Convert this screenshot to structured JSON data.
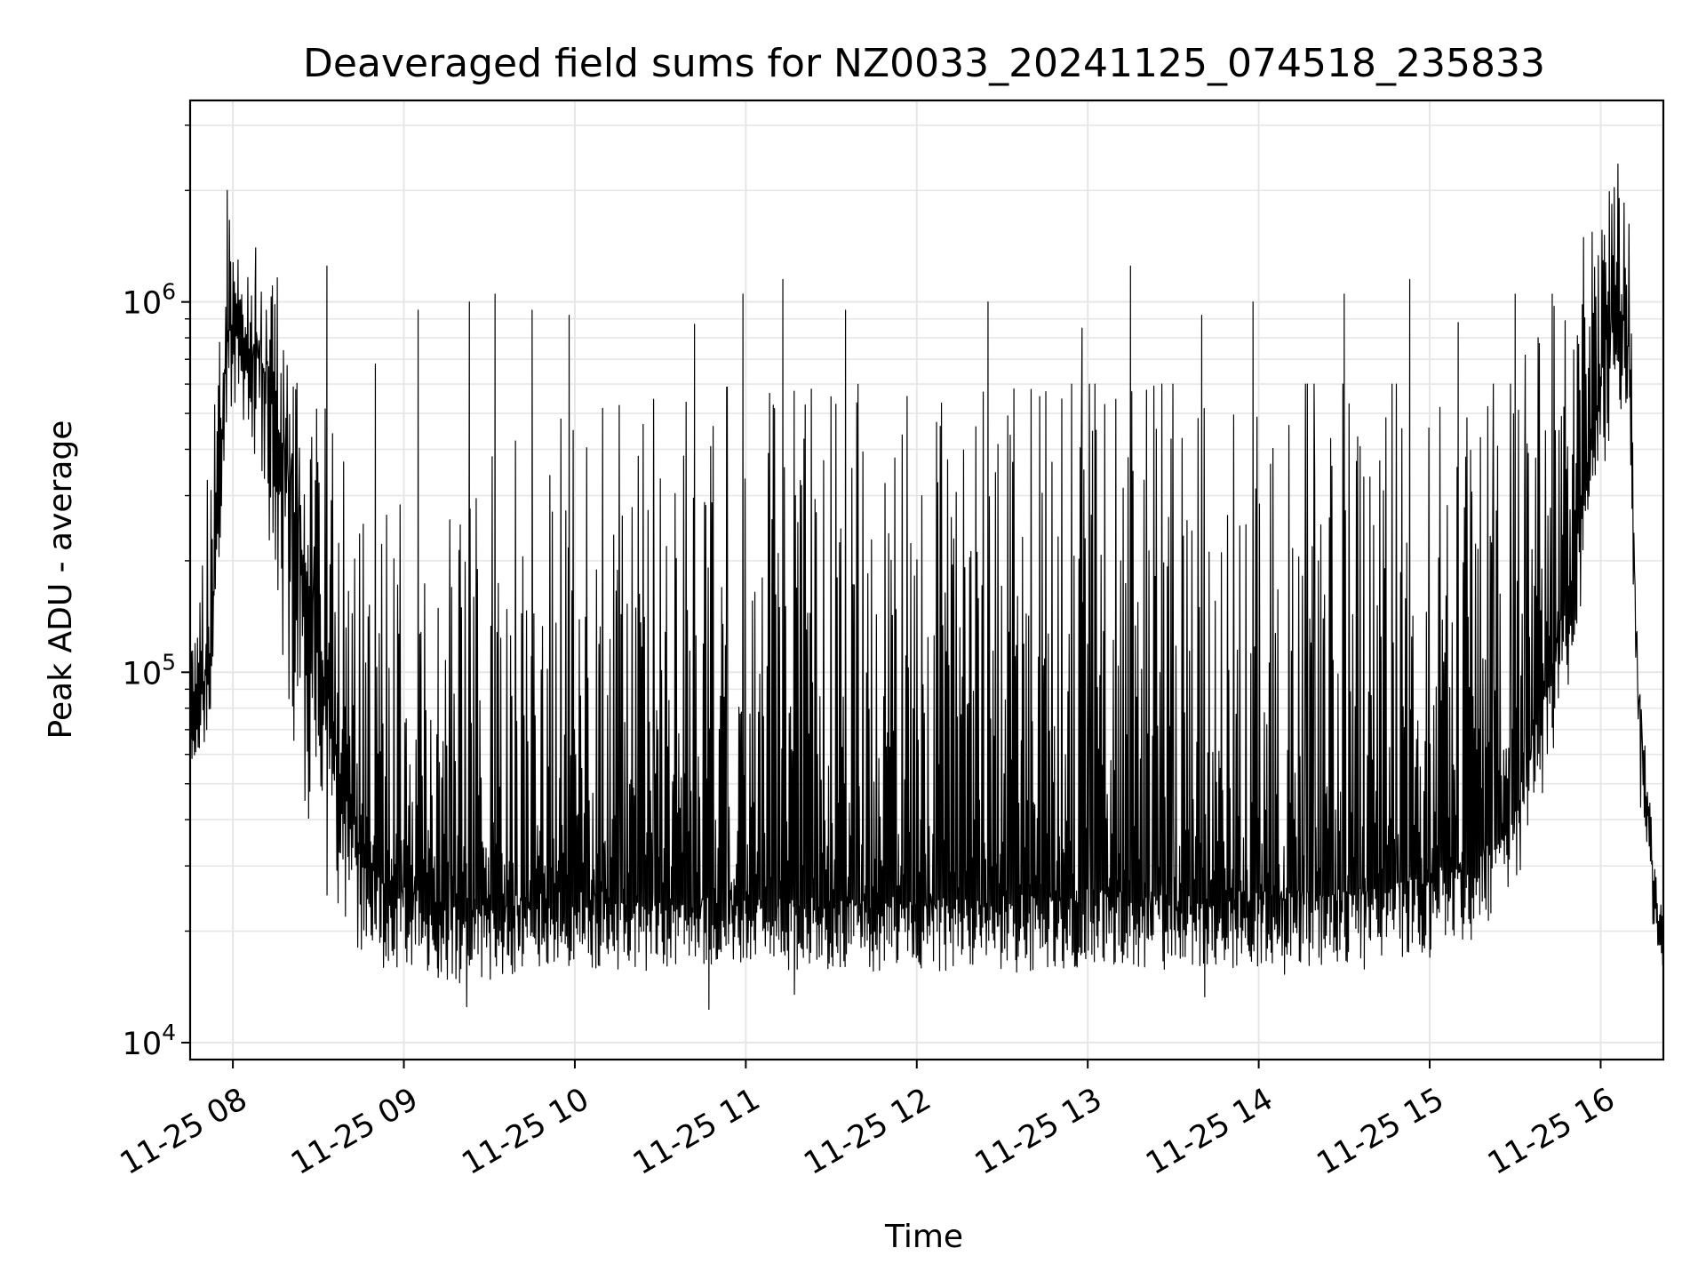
{
  "chart_data": {
    "type": "line",
    "title": "Deaveraged field sums for NZ0033_20241125_074518_235833",
    "xlabel": "Time",
    "ylabel": "Peak ADU - average",
    "y_scale": "log",
    "ylim": [
      9000,
      3500000
    ],
    "xlim": [
      "2024-11-25 07:45",
      "2024-11-25 16:22"
    ],
    "grid": true,
    "line_color": "#000000",
    "grid_color": "#e6e6e6",
    "x_ticks": [
      {
        "label": "11-25 08",
        "value": "2024-11-25 08:00"
      },
      {
        "label": "11-25 09",
        "value": "2024-11-25 09:00"
      },
      {
        "label": "11-25 10",
        "value": "2024-11-25 10:00"
      },
      {
        "label": "11-25 11",
        "value": "2024-11-25 11:00"
      },
      {
        "label": "11-25 12",
        "value": "2024-11-25 12:00"
      },
      {
        "label": "11-25 13",
        "value": "2024-11-25 13:00"
      },
      {
        "label": "11-25 14",
        "value": "2024-11-25 14:00"
      },
      {
        "label": "11-25 15",
        "value": "2024-11-25 15:00"
      },
      {
        "label": "11-25 16",
        "value": "2024-11-25 16:00"
      }
    ],
    "y_ticks": [
      {
        "base": "10",
        "exp": "4",
        "value": 10000
      },
      {
        "base": "10",
        "exp": "5",
        "value": 100000
      },
      {
        "base": "10",
        "exp": "6",
        "value": 1000000
      }
    ],
    "series": [
      {
        "x": [
          "2024-11-25 07:45",
          "2024-11-25 07:48",
          "2024-11-25 07:52",
          "2024-11-25 07:55",
          "2024-11-25 07:58",
          "2024-11-25 08:02",
          "2024-11-25 08:06",
          "2024-11-25 08:10",
          "2024-11-25 08:15",
          "2024-11-25 08:20",
          "2024-11-25 08:25",
          "2024-11-25 08:30",
          "2024-11-25 08:35",
          "2024-11-25 08:40",
          "2024-11-25 08:45",
          "2024-11-25 08:52",
          "2024-11-25 09:00",
          "2024-11-25 09:15",
          "2024-11-25 09:30",
          "2024-11-25 09:45",
          "2024-11-25 10:00",
          "2024-11-25 10:30",
          "2024-11-25 11:00",
          "2024-11-25 11:30",
          "2024-11-25 12:00",
          "2024-11-25 12:30",
          "2024-11-25 13:00",
          "2024-11-25 13:30",
          "2024-11-25 14:00",
          "2024-11-25 14:30",
          "2024-11-25 15:00",
          "2024-11-25 15:15",
          "2024-11-25 15:30",
          "2024-11-25 15:40",
          "2024-11-25 15:50",
          "2024-11-25 15:55",
          "2024-11-25 16:00",
          "2024-11-25 16:05",
          "2024-11-25 16:08",
          "2024-11-25 16:10",
          "2024-11-25 16:13",
          "2024-11-25 16:16",
          "2024-11-25 16:19",
          "2024-11-25 16:22"
        ],
        "base": [
          75000,
          80000,
          110000,
          300000,
          800000,
          900000,
          700000,
          700000,
          500000,
          300000,
          200000,
          120000,
          70000,
          40000,
          30000,
          26000,
          25000,
          23000,
          22000,
          24000,
          24000,
          23000,
          23000,
          23000,
          23000,
          23000,
          24000,
          23000,
          24000,
          24000,
          27000,
          29000,
          40000,
          80000,
          180000,
          350000,
          600000,
          900000,
          900000,
          700000,
          90000,
          45000,
          25000,
          17000
        ],
        "peak": [
          140000,
          180000,
          400000,
          1200000,
          2000000,
          1300000,
          1300000,
          1100000,
          1200000,
          1250000,
          700000,
          600000,
          500000,
          400000,
          380000,
          300000,
          280000,
          250000,
          380000,
          450000,
          500000,
          550000,
          600000,
          600000,
          600000,
          600000,
          600000,
          600000,
          600000,
          600000,
          600000,
          600000,
          600000,
          1000000,
          1400000,
          1600000,
          1800000,
          2500000,
          2600000,
          1800000,
          100000,
          60000,
          30000,
          22000
        ],
        "trough": [
          50000,
          60000,
          70000,
          180000,
          500000,
          550000,
          400000,
          300000,
          150000,
          70000,
          40000,
          30000,
          22000,
          20000,
          17000,
          16000,
          15500,
          14500,
          14500,
          16000,
          16000,
          15500,
          15500,
          15500,
          15500,
          15500,
          16000,
          15500,
          16000,
          16000,
          17500,
          19000,
          26000,
          45000,
          100000,
          200000,
          300000,
          500000,
          500000,
          450000,
          50000,
          32000,
          18000,
          16000
        ],
        "spikes": [
          {
            "t": "2024-11-25 07:58",
            "v": 2000000
          },
          {
            "t": "2024-11-25 08:08",
            "v": 1400000
          },
          {
            "t": "2024-11-25 08:33",
            "v": 1250000
          },
          {
            "t": "2024-11-25 08:50",
            "v": 680000
          },
          {
            "t": "2024-11-25 09:05",
            "v": 950000
          },
          {
            "t": "2024-11-25 09:23",
            "v": 1000000
          },
          {
            "t": "2024-11-25 09:32",
            "v": 1050000
          },
          {
            "t": "2024-11-25 09:45",
            "v": 950000
          },
          {
            "t": "2024-11-25 09:58",
            "v": 920000
          },
          {
            "t": "2024-11-25 10:42",
            "v": 870000
          },
          {
            "t": "2024-11-25 10:59",
            "v": 1050000
          },
          {
            "t": "2024-11-25 11:13",
            "v": 1150000
          },
          {
            "t": "2024-11-25 11:35",
            "v": 950000
          },
          {
            "t": "2024-11-25 12:25",
            "v": 1000000
          },
          {
            "t": "2024-11-25 12:58",
            "v": 850000
          },
          {
            "t": "2024-11-25 13:15",
            "v": 1250000
          },
          {
            "t": "2024-11-25 13:40",
            "v": 920000
          },
          {
            "t": "2024-11-25 13:58",
            "v": 1000000
          },
          {
            "t": "2024-11-25 14:30",
            "v": 1050000
          },
          {
            "t": "2024-11-25 14:53",
            "v": 1150000
          },
          {
            "t": "2024-11-25 15:10",
            "v": 880000
          },
          {
            "t": "2024-11-25 15:30",
            "v": 1050000
          },
          {
            "t": "2024-11-25 15:43",
            "v": 1050000
          }
        ],
        "dips": [
          {
            "t": "2024-11-25 09:12",
            "v": 15000
          },
          {
            "t": "2024-11-25 09:22",
            "v": 12500
          },
          {
            "t": "2024-11-25 10:47",
            "v": 12300
          },
          {
            "t": "2024-11-25 11:17",
            "v": 13500
          },
          {
            "t": "2024-11-25 12:35",
            "v": 15500
          },
          {
            "t": "2024-11-25 13:41",
            "v": 13300
          },
          {
            "t": "2024-11-25 14:09",
            "v": 15300
          },
          {
            "t": "2024-11-25 14:37",
            "v": 15800
          },
          {
            "t": "2024-11-25 15:00",
            "v": 17000
          }
        ]
      }
    ]
  }
}
